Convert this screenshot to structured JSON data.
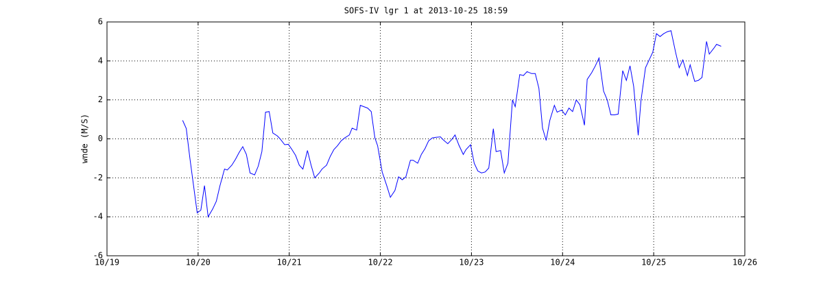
{
  "chart_data": {
    "type": "line",
    "title": "SOFS-IV lgr 1 at 2013-10-25 18:59",
    "ylabel": "wnde (M/S)",
    "x": [
      19.83,
      19.87,
      19.91,
      19.95,
      19.99,
      20.03,
      20.07,
      20.11,
      20.16,
      20.2,
      20.24,
      20.29,
      20.32,
      20.37,
      20.41,
      20.45,
      20.49,
      20.53,
      20.57,
      20.62,
      20.66,
      20.7,
      20.74,
      20.78,
      20.82,
      20.87,
      20.9,
      20.95,
      20.99,
      21.03,
      21.07,
      21.11,
      21.15,
      21.2,
      21.24,
      21.28,
      21.33,
      21.36,
      21.41,
      21.45,
      21.49,
      21.53,
      21.57,
      21.61,
      21.66,
      21.69,
      21.74,
      21.78,
      21.82,
      21.86,
      21.9,
      21.94,
      21.97,
      22.02,
      22.07,
      22.11,
      22.16,
      22.2,
      22.24,
      22.28,
      22.33,
      22.36,
      22.41,
      22.45,
      22.49,
      22.53,
      22.57,
      22.61,
      22.66,
      22.69,
      22.74,
      22.78,
      22.82,
      22.86,
      22.91,
      22.94,
      22.99,
      23.03,
      23.07,
      23.11,
      23.15,
      23.19,
      23.24,
      23.27,
      23.32,
      23.36,
      23.4,
      23.45,
      23.48,
      23.53,
      23.57,
      23.61,
      23.66,
      23.7,
      23.74,
      23.78,
      23.82,
      23.86,
      23.91,
      23.94,
      23.99,
      24.03,
      24.07,
      24.11,
      24.15,
      24.19,
      24.24,
      24.27,
      24.32,
      24.36,
      24.4,
      24.45,
      24.49,
      24.53,
      24.57,
      24.61,
      24.66,
      24.7,
      24.74,
      24.78,
      24.83,
      24.86,
      24.91,
      24.95,
      24.99,
      25.03,
      25.07,
      25.11,
      25.15,
      25.19,
      25.24,
      25.28,
      25.32,
      25.37,
      25.4,
      25.45,
      25.49,
      25.53,
      25.58,
      25.61,
      25.66,
      25.69,
      25.74
    ],
    "series": [
      {
        "color": "#0000ff",
        "values": [
          0.95,
          0.53,
          -1.0,
          -2.4,
          -3.8,
          -3.66,
          -2.4,
          -4.0,
          -3.6,
          -3.2,
          -2.4,
          -1.55,
          -1.6,
          -1.35,
          -1.05,
          -0.7,
          -0.4,
          -0.8,
          -1.75,
          -1.85,
          -1.4,
          -0.65,
          1.37,
          1.4,
          0.3,
          0.15,
          0,
          -0.3,
          -0.28,
          -0.55,
          -0.85,
          -1.35,
          -1.55,
          -0.6,
          -1.35,
          -2.0,
          -1.75,
          -1.55,
          -1.35,
          -0.9,
          -0.55,
          -0.35,
          -0.1,
          0.05,
          0.2,
          0.55,
          0.45,
          1.72,
          1.65,
          1.58,
          1.4,
          0.05,
          -0.35,
          -1.7,
          -2.4,
          -3.0,
          -2.65,
          -1.95,
          -2.1,
          -1.95,
          -1.1,
          -1.1,
          -1.25,
          -0.8,
          -0.5,
          -0.1,
          0.05,
          0.08,
          0.1,
          -0.05,
          -0.25,
          -0.05,
          0.2,
          -0.3,
          -0.8,
          -0.55,
          -0.3,
          -1.25,
          -1.65,
          -1.75,
          -1.7,
          -1.5,
          0.52,
          -0.65,
          -0.6,
          -1.75,
          -1.25,
          2.0,
          1.65,
          3.3,
          3.25,
          3.45,
          3.35,
          3.35,
          2.6,
          0.55,
          -0.08,
          0.95,
          1.72,
          1.37,
          1.48,
          1.23,
          1.58,
          1.4,
          2.0,
          1.75,
          0.7,
          3.05,
          3.4,
          3.75,
          4.15,
          2.45,
          2.0,
          1.23,
          1.23,
          1.27,
          3.5,
          3.0,
          3.75,
          2.7,
          0.18,
          1.95,
          3.65,
          4.05,
          4.45,
          5.4,
          5.25,
          5.4,
          5.5,
          5.55,
          4.45,
          3.65,
          4.05,
          3.25,
          3.8,
          2.95,
          3.0,
          3.15,
          5.0,
          4.35,
          4.65,
          4.85,
          4.75
        ]
      }
    ],
    "xlim": [
      19,
      26
    ],
    "xticks": [
      {
        "value": 19,
        "label": "10/19"
      },
      {
        "value": 20,
        "label": "10/20"
      },
      {
        "value": 21,
        "label": "10/21"
      },
      {
        "value": 22,
        "label": "10/22"
      },
      {
        "value": 23,
        "label": "10/23"
      },
      {
        "value": 24,
        "label": "10/24"
      },
      {
        "value": 25,
        "label": "10/25"
      },
      {
        "value": 26,
        "label": "10/26"
      }
    ],
    "ylim": [
      -6,
      6
    ],
    "yticks": [
      -6,
      -4,
      -2,
      0,
      2,
      4,
      6
    ],
    "grid": true
  }
}
